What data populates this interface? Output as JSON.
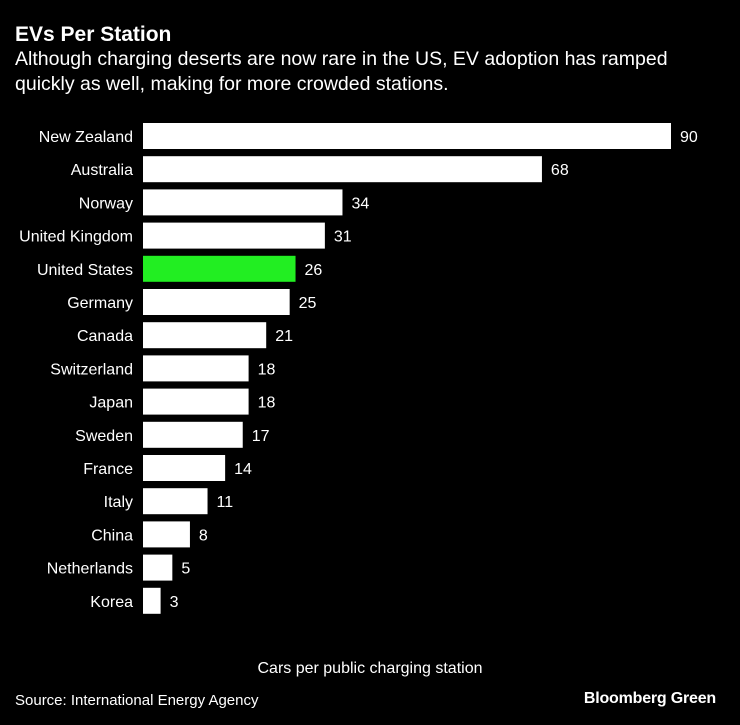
{
  "header": {
    "title": "EVs Per Station",
    "subtitle": "Although charging deserts are now rare in the US, EV adoption has ramped quickly as well, making for more crowded stations."
  },
  "footer": {
    "source": "Source: International Energy Agency",
    "brand": "Bloomberg Green"
  },
  "colors": {
    "background": "#000000",
    "bar": "#ffffff",
    "highlight": "#22ee22",
    "text": "#ffffff"
  },
  "chart_data": {
    "type": "bar",
    "orientation": "horizontal",
    "title": "EVs Per Station",
    "xlabel": "Cars per public charging station",
    "ylabel": "",
    "categories": [
      "New Zealand",
      "Australia",
      "Norway",
      "United Kingdom",
      "United States",
      "Germany",
      "Canada",
      "Switzerland",
      "Japan",
      "Sweden",
      "France",
      "Italy",
      "China",
      "Netherlands",
      "Korea"
    ],
    "values": [
      90,
      68,
      34,
      31,
      26,
      25,
      21,
      18,
      18,
      17,
      14,
      11,
      8,
      5,
      3
    ],
    "highlight": "United States",
    "xlim": [
      0,
      90
    ],
    "grid": false,
    "data_labels": true
  }
}
